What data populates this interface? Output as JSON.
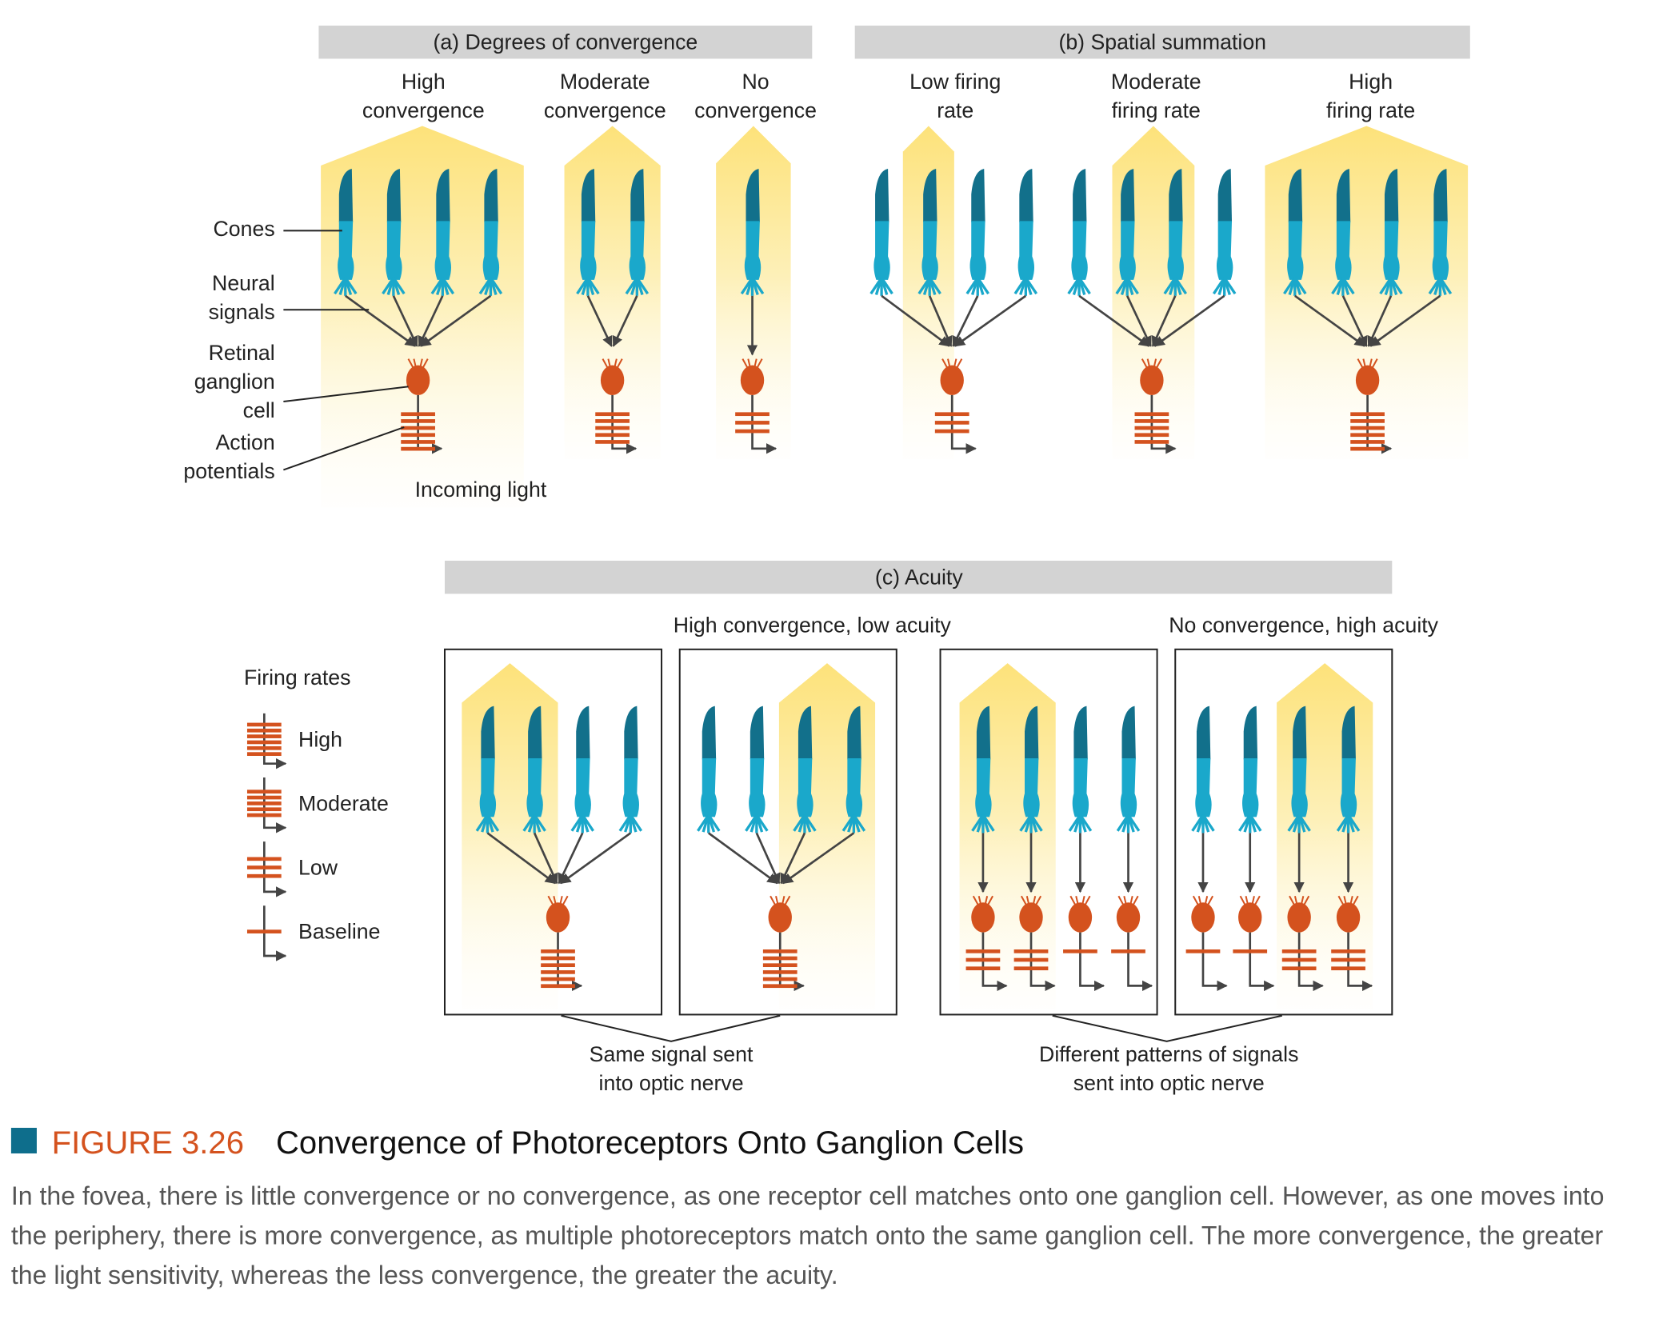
{
  "panel_a": {
    "title": "(a)   Degrees of convergence",
    "columns": [
      [
        "High",
        "convergence"
      ],
      [
        "Moderate",
        "convergence"
      ],
      [
        "No",
        "convergence"
      ]
    ],
    "labels": {
      "cones": "Cones",
      "neural_signals": [
        "Neural",
        "signals"
      ],
      "ganglion": [
        "Retinal",
        "ganglion",
        "cell"
      ],
      "action": [
        "Action",
        "potentials"
      ],
      "light": "Incoming light"
    }
  },
  "panel_b": {
    "title": "(b)   Spatial summation",
    "columns": [
      [
        "Low firing",
        "rate"
      ],
      [
        "Moderate",
        "firing rate"
      ],
      [
        "High",
        "firing rate"
      ]
    ]
  },
  "panel_c": {
    "title": "(c)   Acuity",
    "groups": [
      "High convergence, low acuity",
      "No convergence, high acuity"
    ],
    "notes": [
      [
        "Same signal sent",
        "into optic nerve"
      ],
      [
        "Different patterns of signals",
        "sent into optic nerve"
      ]
    ]
  },
  "legend": {
    "title": "Firing rates",
    "items": [
      "High",
      "Moderate",
      "Low",
      "Baseline"
    ]
  },
  "caption": {
    "figure": "FIGURE 3.26",
    "title": "Convergence of Photoreceptors Onto Ganglion Cells",
    "text": "In the fovea, there is little convergence or no convergence, as one receptor cell matches onto one ganglion cell. However, as one moves into the periphery, there is more convergence, as multiple photoreceptors match onto the same ganglion cell. The more convergence, the greater the light sensitivity, whereas the less convergence, the greater the acuity."
  }
}
